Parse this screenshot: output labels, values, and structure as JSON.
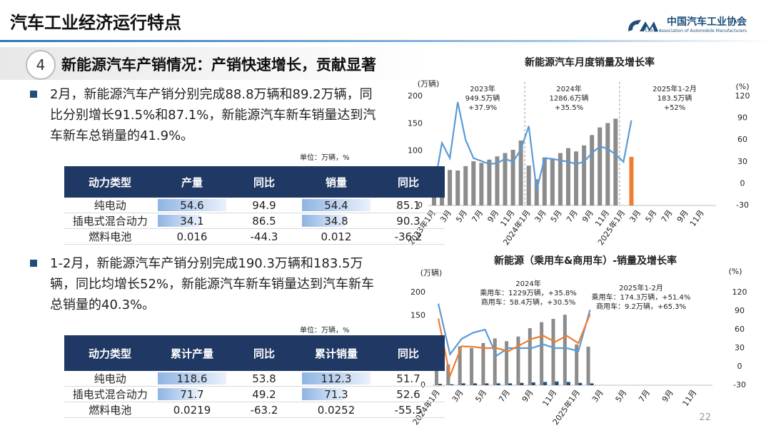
{
  "header": {
    "title": "汽车工业经济运行特点",
    "org": "中国汽车工业协会",
    "org_en": "China Association of Automobile Manufacturers"
  },
  "section": {
    "number": "4",
    "title": "新能源汽车产销情况：产销快速增长，贡献显著"
  },
  "bullets": [
    "2月，新能源汽车产销分别完成88.8万辆和89.2万辆，同比分别增长91.5%和87.1%，新能源汽车新车销量达到汽车新车总销量的41.9%。",
    "1-2月，新能源汽车产销分别完成190.3万辆和183.5万辆，同比均增长52%，新能源汽车新车销量达到汽车新车总销量的40.3%。"
  ],
  "tables": [
    {
      "unit": "单位：万辆，%",
      "columns": [
        "动力类型",
        "产量",
        "同比",
        "销量",
        "同比"
      ],
      "rows": [
        [
          "纯电动",
          54.6,
          94.9,
          54.4,
          85.1
        ],
        [
          "插电式混合动力",
          34.1,
          86.5,
          34.8,
          90.3
        ],
        [
          "燃料电池",
          0.016,
          -44.3,
          0.012,
          -36.2
        ]
      ]
    },
    {
      "unit": "单位：万辆，%",
      "columns": [
        "动力类型",
        "累计产量",
        "同比",
        "累计销量",
        "同比"
      ],
      "rows": [
        [
          "纯电动",
          118.6,
          53.8,
          112.3,
          51.7
        ],
        [
          "插电式混合动力",
          71.7,
          49.2,
          71.3,
          52.6
        ],
        [
          "燃料电池",
          0.0219,
          -63.2,
          0.0252,
          -55.5
        ]
      ]
    }
  ],
  "chart_data": [
    {
      "type": "combo",
      "title": "新能源汽车月度销量及增长率",
      "y_label": "(万辆)",
      "y2_label": "(%)",
      "categories": [
        "2023年1月",
        null,
        "3月",
        null,
        "5月",
        null,
        "7月",
        null,
        "9月",
        null,
        "11月",
        null,
        "2024年1月",
        null,
        "3月",
        null,
        "5月",
        null,
        "7月",
        null,
        "9月",
        null,
        "11月",
        null,
        "2025年1月",
        null,
        "3月",
        null,
        "5月",
        null,
        "7月",
        null,
        "9月",
        null,
        "11月",
        null
      ],
      "series": [
        {
          "kind": "bar",
          "color": "#8c8c8c",
          "values": [
            41,
            53,
            65,
            64,
            72,
            81,
            78,
            84,
            90,
            96,
            102,
            119,
            73,
            48,
            88,
            85,
            96,
            105,
            99,
            110,
            129,
            143,
            151,
            159,
            null,
            null,
            null,
            null,
            null,
            null,
            null,
            null,
            null,
            null,
            null,
            null
          ]
        },
        {
          "kind": "bar",
          "color": "#ed7d31",
          "values": [
            null,
            null,
            null,
            null,
            null,
            null,
            null,
            null,
            null,
            null,
            null,
            null,
            null,
            null,
            null,
            null,
            null,
            null,
            null,
            null,
            null,
            null,
            null,
            null,
            null,
            89,
            null,
            null,
            null,
            null,
            null,
            null,
            null,
            null,
            null,
            null
          ]
        },
        {
          "kind": "line",
          "axis": "y2",
          "color": "#5b9bd5",
          "values": [
            -6,
            56,
            35,
            112,
            60,
            35,
            31,
            27,
            28,
            34,
            30,
            47,
            79,
            -9,
            35,
            34,
            32,
            30,
            27,
            30,
            42,
            51,
            48,
            40,
            30,
            87,
            null,
            null,
            null,
            null,
            null,
            null,
            null,
            null,
            null,
            null
          ]
        }
      ],
      "annotations": [
        {
          "lines": [
            "2023年",
            "949.5万辆",
            "+37.9%"
          ]
        },
        {
          "lines": [
            "2024年",
            "1286.6万辆",
            "+35.5%"
          ]
        },
        {
          "lines": [
            "2025年1-2月",
            "183.5万辆",
            "+52%"
          ]
        }
      ],
      "ylim": [
        0,
        200
      ],
      "yticks": [
        0,
        50,
        100,
        150,
        200
      ],
      "y2lim": [
        -30,
        120
      ],
      "y2ticks": [
        -30,
        0,
        30,
        60,
        90,
        120
      ]
    },
    {
      "type": "combo",
      "title": "新能源（乘用车&商用车）-销量及增长率",
      "y_label": "(万辆)",
      "y2_label": "(%)",
      "categories": [
        "2024年1月",
        null,
        "3月",
        null,
        "5月",
        null,
        "7月",
        null,
        "9月",
        null,
        "11月",
        null,
        "2025年1月",
        null,
        "3月",
        null,
        "5月",
        null,
        "7月",
        null,
        "9月",
        null,
        "11月",
        null
      ],
      "series": [
        {
          "kind": "bar",
          "color": "#8c8c8c",
          "values": [
            69,
            45,
            84,
            80,
            91,
            101,
            95,
            105,
            123,
            136,
            143,
            152,
            88,
            83,
            null,
            null,
            null,
            null,
            null,
            null,
            null,
            null,
            null,
            null
          ]
        },
        {
          "kind": "bar",
          "color": "#1f4e79",
          "values": [
            3,
            2,
            4,
            4,
            4,
            4,
            4,
            5,
            6,
            7,
            8,
            7,
            5,
            4,
            null,
            null,
            null,
            null,
            null,
            null,
            null,
            null,
            null,
            null
          ]
        },
        {
          "kind": "line",
          "axis": "y2",
          "color": "#5b9bd5",
          "values": [
            102,
            20,
            45,
            55,
            60,
            18,
            30,
            30,
            30,
            36,
            30,
            30,
            25,
            92,
            null,
            null,
            null,
            null,
            null,
            null,
            null,
            null,
            null,
            null
          ]
        },
        {
          "kind": "line",
          "axis": "y2",
          "color": "#ed7d31",
          "values": [
            78,
            -15,
            33,
            32,
            30,
            30,
            25,
            35,
            45,
            50,
            40,
            50,
            38,
            85,
            null,
            null,
            null,
            null,
            null,
            null,
            null,
            null,
            null,
            null
          ]
        }
      ],
      "annotations": [
        {
          "lines": [
            "2024年",
            "乘用车：1229万辆，+35.8%",
            "商用车：58.4万辆，+30.5%"
          ]
        },
        {
          "lines": [
            "2025年1-2月",
            "乘用车：174.3万辆，+51.4%",
            "商用车：9.2万辆，+65.3%"
          ]
        }
      ],
      "ylim": [
        0,
        200
      ],
      "yticks": [
        0,
        50,
        100,
        150,
        200
      ],
      "y2lim": [
        -30,
        120
      ],
      "y2ticks": [
        -30,
        0,
        30,
        60,
        90,
        120
      ]
    }
  ],
  "page_number": "22"
}
